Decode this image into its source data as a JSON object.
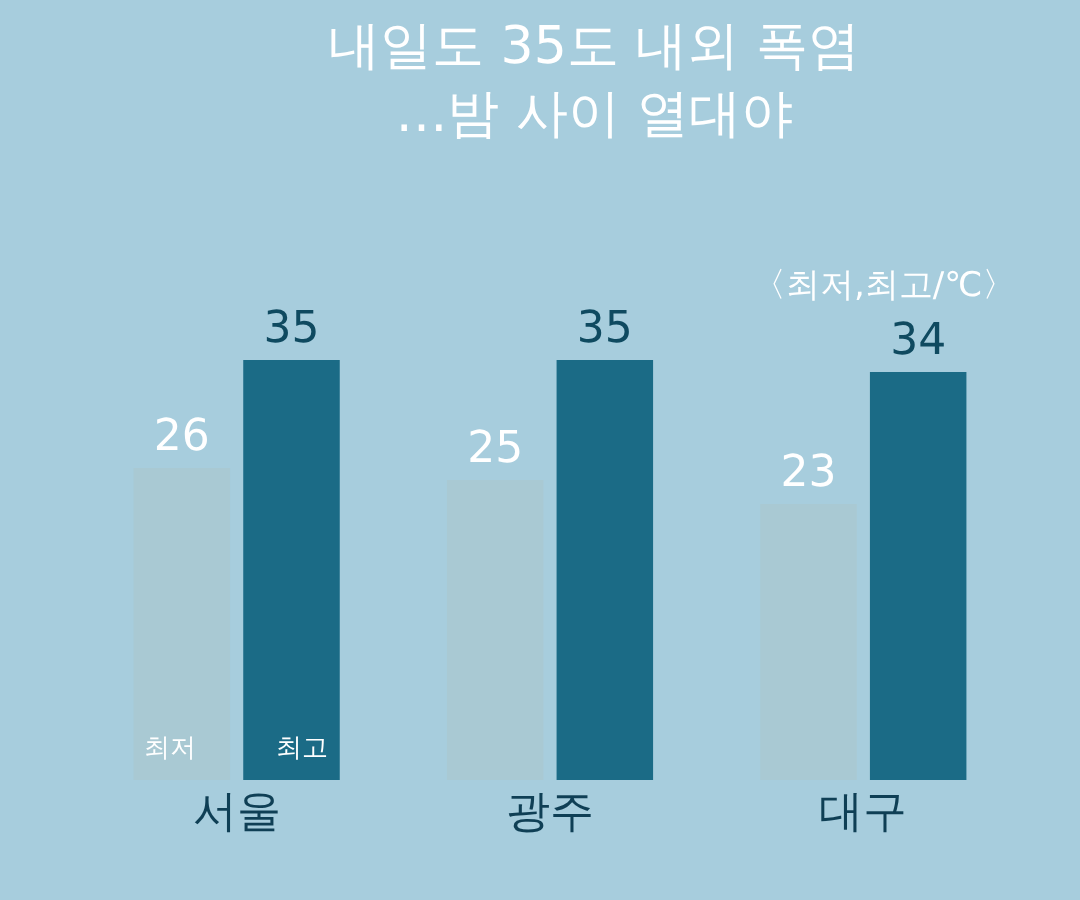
{
  "chart_data": {
    "type": "bar",
    "title": "내일도 35도 내외 폭염\n…밤 사이 열대야",
    "subtitle": "〈최저,최고/℃〉",
    "categories": [
      "서울",
      "광주",
      "대구"
    ],
    "series": [
      {
        "name": "최저",
        "color": "#a9c9d3",
        "values": [
          26,
          25,
          23
        ]
      },
      {
        "name": "최고",
        "color": "#1b6b86",
        "values": [
          35,
          35,
          34
        ]
      }
    ],
    "data_labels": true,
    "grid": false,
    "legend": false
  }
}
